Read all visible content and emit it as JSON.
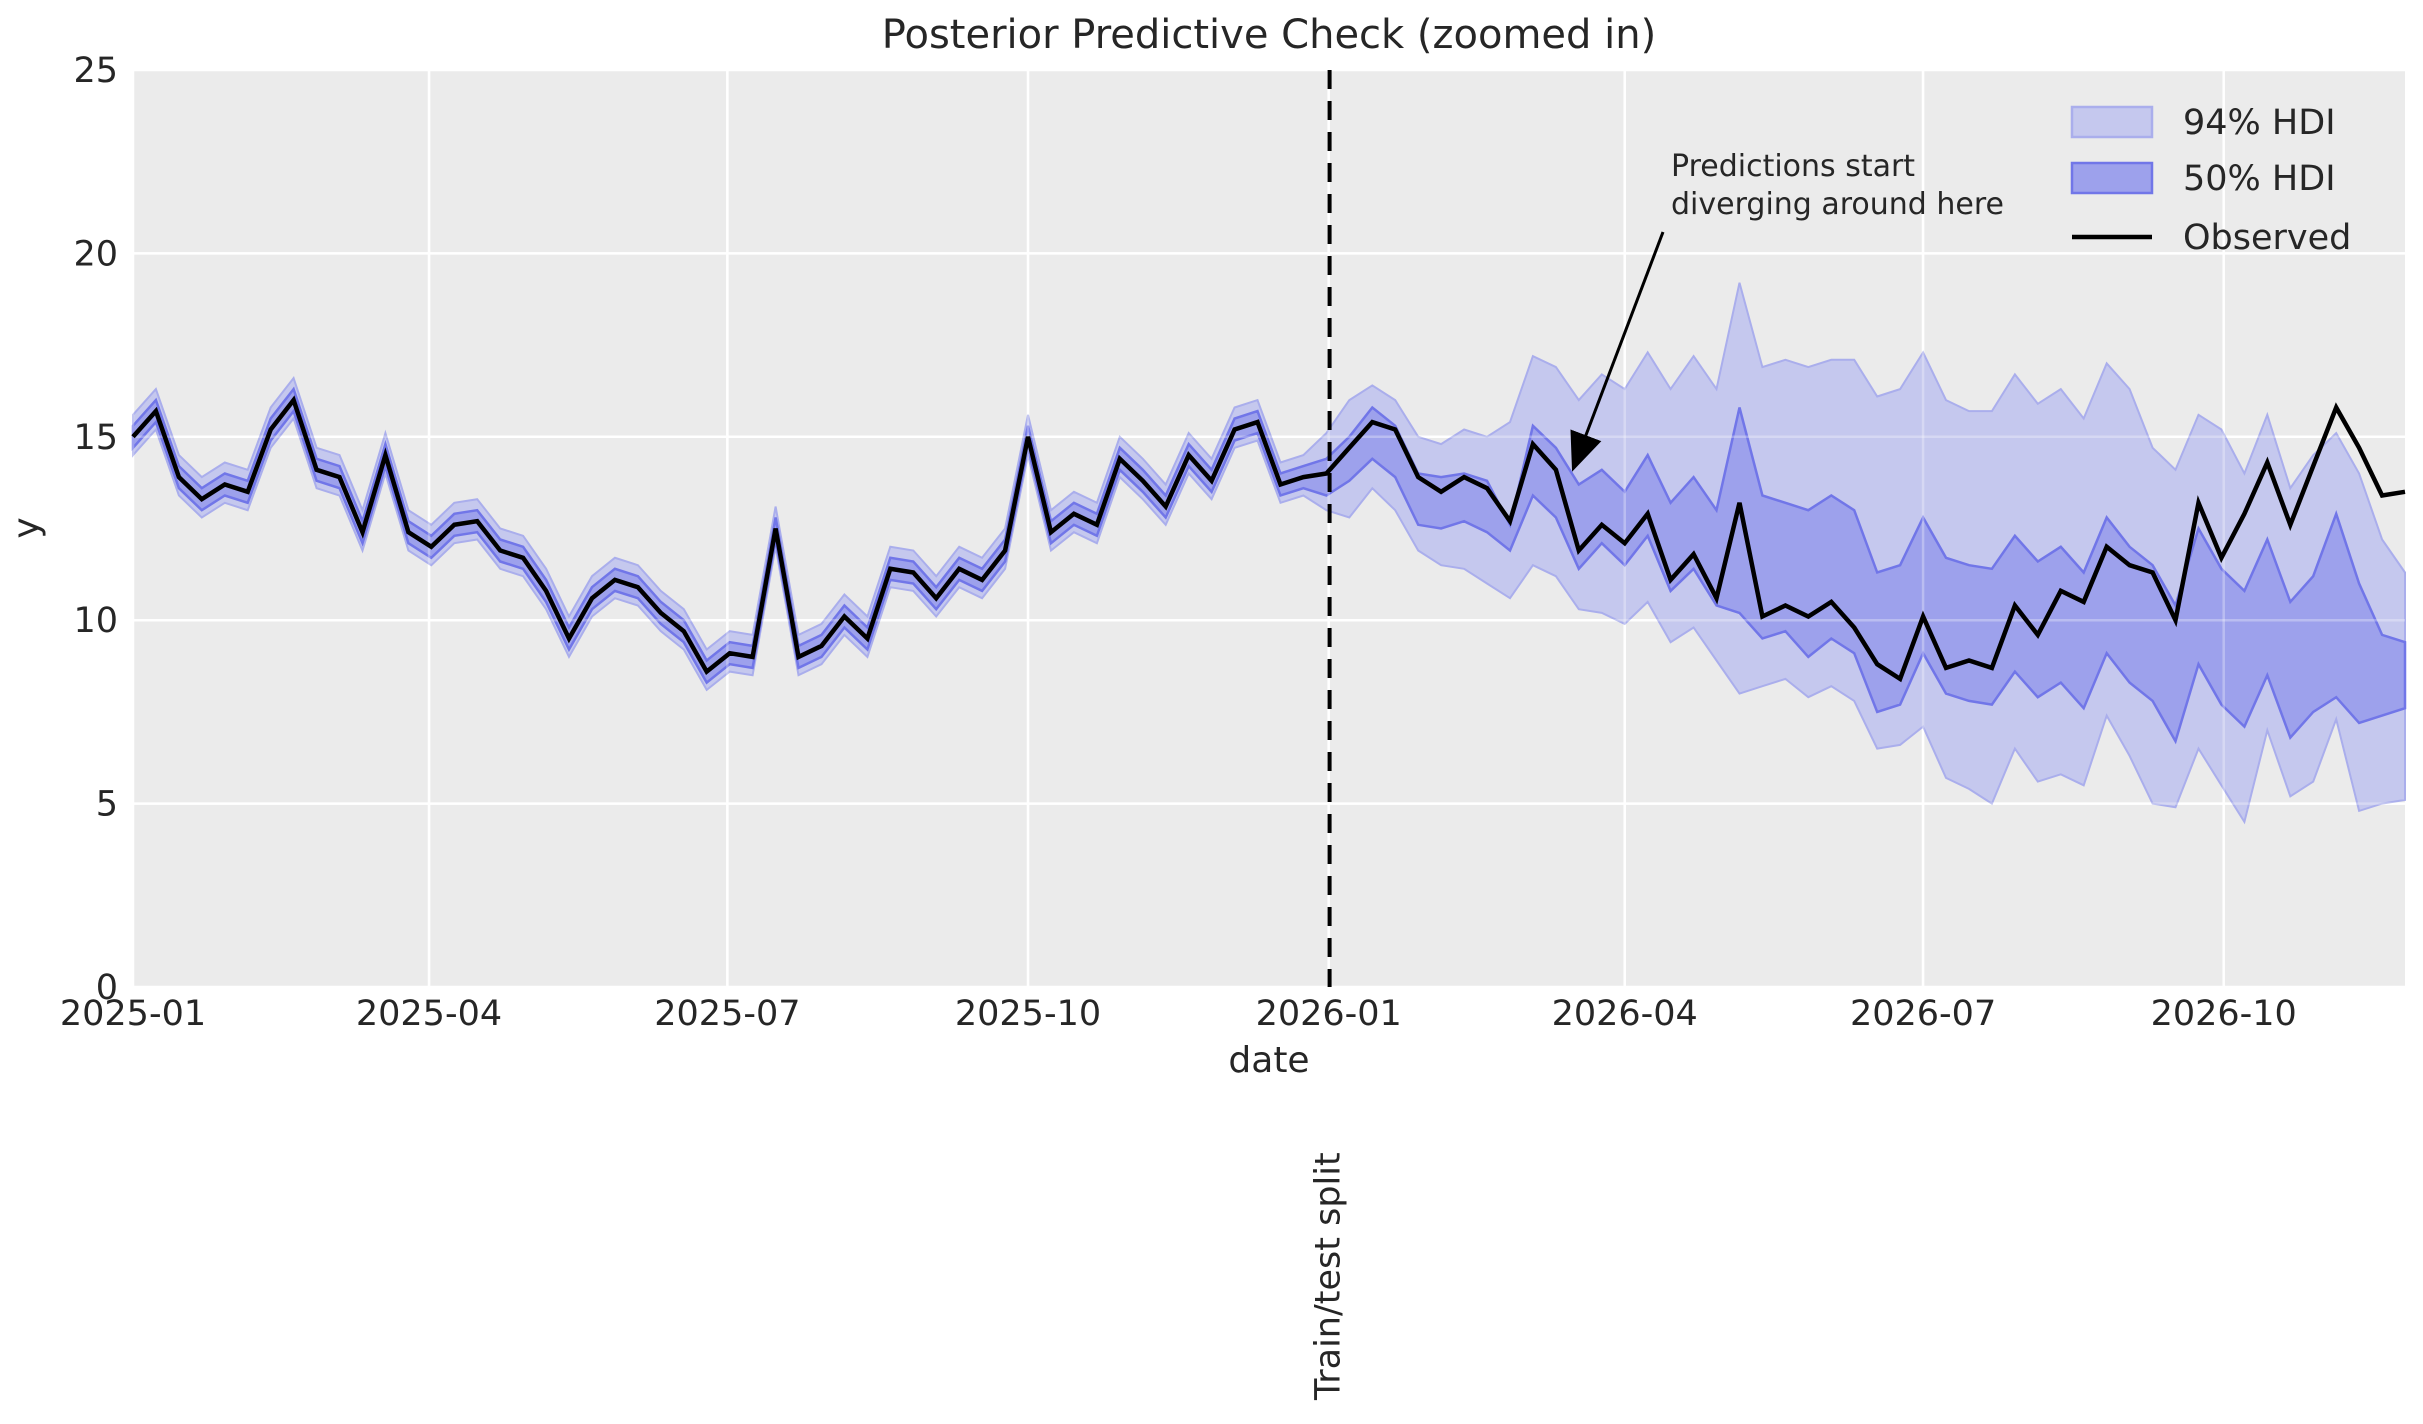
{
  "figure_title": "Posterior Predictive Check (zoomed in)",
  "axes": {
    "xlabel": "date",
    "ylabel": "y",
    "y_ticks": [
      0,
      5,
      10,
      15,
      20,
      25
    ],
    "x_ticks": [
      {
        "label": "2025-01",
        "week": 0
      },
      {
        "label": "2025-04",
        "week": 12.9
      },
      {
        "label": "2025-07",
        "week": 25.9
      },
      {
        "label": "2025-10",
        "week": 39.0
      },
      {
        "label": "2026-01",
        "week": 52.1
      },
      {
        "label": "2026-04",
        "week": 65.0
      },
      {
        "label": "2026-07",
        "week": 78.0
      },
      {
        "label": "2026-10",
        "week": 91.1
      }
    ]
  },
  "split": {
    "label": "Train/test split",
    "week": 52.14
  },
  "annotation": {
    "line1": "Predictions start",
    "line2": "diverging around here",
    "target_week": 62.8,
    "target_y": 14.2
  },
  "legend": [
    {
      "label": "94% HDI",
      "fill": "#c5c8ee",
      "edge": "#aaaeec",
      "kind": "patch"
    },
    {
      "label": "50% HDI",
      "fill": "#9da1ec",
      "edge": "#7176e8",
      "kind": "patch"
    },
    {
      "label": "Observed",
      "fill": "#000000",
      "edge": "#000000",
      "kind": "line"
    }
  ],
  "colors": {
    "bg": "#ffffff",
    "axes_bg": "#ebebeb",
    "grid": "#ffffff",
    "observed": "#000000",
    "hdi94_fill": "#c5c8ee",
    "hdi94_edge": "#aaaeec",
    "hdi50_fill": "#9da1ec",
    "hdi50_edge": "#7176e8",
    "split_line": "#000000",
    "text": "#262626"
  },
  "chart_data": {
    "type": "line",
    "title": "Posterior Predictive Check (zoomed in)",
    "xlabel": "date",
    "ylabel": "y",
    "ylim": [
      0,
      25
    ],
    "x_unit": "weeks since 2025-01",
    "x_range_weeks": [
      0,
      99
    ],
    "grid": true,
    "legend_position": "upper right",
    "series": [
      {
        "name": "Observed",
        "type": "line",
        "color": "#000000"
      },
      {
        "name": "94% HDI",
        "type": "band",
        "color": "#c5c8ee"
      },
      {
        "name": "50% HDI",
        "type": "band",
        "color": "#9da1ec"
      }
    ],
    "observed": [
      15.0,
      15.7,
      13.9,
      13.3,
      13.7,
      13.5,
      15.2,
      16.0,
      14.1,
      13.9,
      12.4,
      14.5,
      12.4,
      12.0,
      12.6,
      12.7,
      11.9,
      11.7,
      10.8,
      9.5,
      10.6,
      11.1,
      10.9,
      10.2,
      9.7,
      8.6,
      9.1,
      9.0,
      12.5,
      9.0,
      9.3,
      10.1,
      9.5,
      11.4,
      11.3,
      10.6,
      11.4,
      11.1,
      11.9,
      15.0,
      12.4,
      12.9,
      12.6,
      14.4,
      13.8,
      13.1,
      14.5,
      13.8,
      15.2,
      15.4,
      13.7,
      13.9,
      14.0,
      14.7,
      15.4,
      15.2,
      13.9,
      13.5,
      13.9,
      13.6,
      12.7,
      14.8,
      14.1,
      11.9,
      12.6,
      12.1,
      12.9,
      11.1,
      11.8,
      10.6,
      13.2,
      10.1,
      10.4,
      10.1,
      10.5,
      9.8,
      8.8,
      8.4,
      10.1,
      8.7,
      8.9,
      8.7,
      10.4,
      9.6,
      10.8,
      10.5,
      12.0,
      11.5,
      11.3,
      10.0,
      13.2,
      11.7,
      12.9,
      14.3,
      12.6,
      14.2,
      15.8,
      14.7,
      13.4,
      13.5
    ],
    "hdi94_upper": [
      15.6,
      16.3,
      14.5,
      13.9,
      14.3,
      14.1,
      15.8,
      16.6,
      14.7,
      14.5,
      13.0,
      15.1,
      13.0,
      12.6,
      13.2,
      13.3,
      12.5,
      12.3,
      11.4,
      10.1,
      11.2,
      11.7,
      11.5,
      10.8,
      10.3,
      9.2,
      9.7,
      9.6,
      13.1,
      9.6,
      9.9,
      10.7,
      10.1,
      12.0,
      11.9,
      11.2,
      12.0,
      11.7,
      12.5,
      15.6,
      13.0,
      13.5,
      13.2,
      15.0,
      14.4,
      13.7,
      15.1,
      14.4,
      15.8,
      16.0,
      14.3,
      14.5,
      15.1,
      16.0,
      16.4,
      16.0,
      15.0,
      14.8,
      15.2,
      15.0,
      15.4,
      17.2,
      16.9,
      16.0,
      16.7,
      16.3,
      17.3,
      16.3,
      17.2,
      16.3,
      19.2,
      16.9,
      17.1,
      16.9,
      17.1,
      17.1,
      16.1,
      16.3,
      17.3,
      16.0,
      15.7,
      15.7,
      16.7,
      15.9,
      16.3,
      15.5,
      17.0,
      16.3,
      14.7,
      14.1,
      15.6,
      15.2,
      14.0,
      15.6,
      13.6,
      14.5,
      15.1,
      14.0,
      12.2,
      11.3
    ],
    "hdi94_lower": [
      14.5,
      15.2,
      13.4,
      12.8,
      13.2,
      13.0,
      14.7,
      15.5,
      13.6,
      13.4,
      11.9,
      14.0,
      11.9,
      11.5,
      12.1,
      12.2,
      11.4,
      11.2,
      10.3,
      9.0,
      10.1,
      10.6,
      10.4,
      9.7,
      9.2,
      8.1,
      8.6,
      8.5,
      12.0,
      8.5,
      8.8,
      9.6,
      9.0,
      10.9,
      10.8,
      10.1,
      10.9,
      10.6,
      11.4,
      14.5,
      11.9,
      12.4,
      12.1,
      13.9,
      13.3,
      12.6,
      14.0,
      13.3,
      14.7,
      14.9,
      13.2,
      13.4,
      13.0,
      12.8,
      13.6,
      13.0,
      11.9,
      11.5,
      11.4,
      11.0,
      10.6,
      11.5,
      11.2,
      10.3,
      10.2,
      9.9,
      10.5,
      9.4,
      9.8,
      8.9,
      8.0,
      8.2,
      8.4,
      7.9,
      8.2,
      7.8,
      6.5,
      6.6,
      7.1,
      5.7,
      5.4,
      5.0,
      6.5,
      5.6,
      5.8,
      5.5,
      7.4,
      6.3,
      5.0,
      4.9,
      6.5,
      5.5,
      4.5,
      7.0,
      5.2,
      5.6,
      7.3,
      4.8,
      5.0,
      5.1
    ],
    "hdi50_upper": [
      15.3,
      16.0,
      14.2,
      13.6,
      14.0,
      13.8,
      15.5,
      16.3,
      14.4,
      14.2,
      12.7,
      14.8,
      12.7,
      12.3,
      12.9,
      13.0,
      12.2,
      12.0,
      11.1,
      9.8,
      10.9,
      11.4,
      11.2,
      10.5,
      10.0,
      8.9,
      9.4,
      9.3,
      12.8,
      9.3,
      9.6,
      10.4,
      9.8,
      11.7,
      11.6,
      10.9,
      11.7,
      11.4,
      12.2,
      15.3,
      12.7,
      13.2,
      12.9,
      14.7,
      14.1,
      13.4,
      14.8,
      14.1,
      15.5,
      15.7,
      14.0,
      14.2,
      14.4,
      15.0,
      15.8,
      15.3,
      14.0,
      13.9,
      14.0,
      13.8,
      12.6,
      15.3,
      14.7,
      13.7,
      14.1,
      13.5,
      14.5,
      13.2,
      13.9,
      13.0,
      15.8,
      13.4,
      13.2,
      13.0,
      13.4,
      13.0,
      11.3,
      11.5,
      12.8,
      11.7,
      11.5,
      11.4,
      12.3,
      11.6,
      12.0,
      11.3,
      12.8,
      12.0,
      11.5,
      10.4,
      12.5,
      11.4,
      10.8,
      12.2,
      10.5,
      11.2,
      12.9,
      11.0,
      9.6,
      9.4
    ],
    "hdi50_lower": [
      14.7,
      15.4,
      13.6,
      13.0,
      13.4,
      13.2,
      14.9,
      15.7,
      13.8,
      13.6,
      12.1,
      14.2,
      12.1,
      11.7,
      12.3,
      12.4,
      11.6,
      11.4,
      10.5,
      9.2,
      10.3,
      10.8,
      10.6,
      9.9,
      9.4,
      8.3,
      8.8,
      8.7,
      12.2,
      8.7,
      9.0,
      9.8,
      9.2,
      11.1,
      11.0,
      10.3,
      11.1,
      10.8,
      11.6,
      14.7,
      12.1,
      12.6,
      12.3,
      14.1,
      13.5,
      12.8,
      14.2,
      13.5,
      14.9,
      15.1,
      13.4,
      13.6,
      13.4,
      13.8,
      14.4,
      13.9,
      12.6,
      12.5,
      12.7,
      12.4,
      11.9,
      13.4,
      12.8,
      11.4,
      12.1,
      11.5,
      12.3,
      10.8,
      11.4,
      10.4,
      10.2,
      9.5,
      9.7,
      9.0,
      9.5,
      9.1,
      7.5,
      7.7,
      9.1,
      8.0,
      7.8,
      7.7,
      8.6,
      7.9,
      8.3,
      7.6,
      9.1,
      8.3,
      7.8,
      6.7,
      8.8,
      7.7,
      7.1,
      8.5,
      6.8,
      7.5,
      7.9,
      7.2,
      7.4,
      7.6
    ]
  }
}
